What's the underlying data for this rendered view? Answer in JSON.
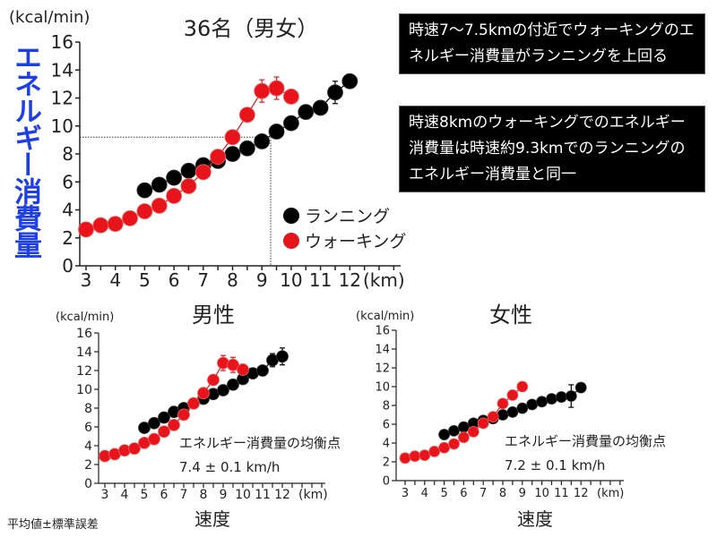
{
  "vertical_title": "エネルギー消費量",
  "notes": [
    "時速7〜7.5kmの付近でウォーキングのエネルギー消費量がランニングを上回る",
    "時速8kmのウォーキングでのエネルギー消費量は時速約9.3kmでのランニングのエネルギー消費量と同一"
  ],
  "footnote": "平均値±標準誤差",
  "colors": {
    "running": "#000000",
    "walking": "#e8141c",
    "title_blue": "#1f3fe6"
  },
  "chart_data": [
    {
      "type": "line",
      "title": "36名（男女）",
      "ylabel": "(kcal/min)",
      "xunit": "(km)",
      "xlabel": "",
      "ylim": [
        0,
        16
      ],
      "yticks": [
        0,
        2,
        4,
        6,
        8,
        10,
        12,
        14,
        16
      ],
      "xticks": [
        3,
        4,
        5,
        6,
        7,
        8,
        9,
        10,
        11,
        12
      ],
      "legend": [
        "ランニング",
        "ウォーキング"
      ],
      "legend_position": "right",
      "reference": {
        "x": 9.3,
        "y": 9.2
      },
      "series": [
        {
          "name": "ランニング",
          "color": "#000000",
          "x": [
            5,
            5.5,
            6,
            6.5,
            7,
            7.5,
            8,
            8.5,
            9,
            9.5,
            10,
            10.5,
            11,
            11.5,
            12
          ],
          "y": [
            5.4,
            5.8,
            6.3,
            6.8,
            7.2,
            7.5,
            8.0,
            8.4,
            8.9,
            9.6,
            10.2,
            11.0,
            11.3,
            12.4,
            13.2
          ],
          "err": [
            0,
            0,
            0,
            0,
            0,
            0,
            0,
            0,
            0,
            0,
            0,
            0,
            0.3,
            0.8,
            0
          ]
        },
        {
          "name": "ウォーキング",
          "color": "#e8141c",
          "x": [
            3,
            3.5,
            4,
            4.5,
            5,
            5.5,
            6,
            6.5,
            7,
            7.5,
            8,
            8.5,
            9,
            9.5,
            10
          ],
          "y": [
            2.6,
            2.9,
            3.0,
            3.4,
            3.9,
            4.3,
            5.0,
            5.7,
            6.7,
            7.8,
            9.2,
            10.8,
            12.5,
            12.7,
            12.1
          ],
          "err": [
            0,
            0,
            0,
            0,
            0,
            0,
            0,
            0,
            0,
            0,
            0,
            0,
            0.8,
            0.8,
            0
          ]
        }
      ]
    },
    {
      "type": "line",
      "title": "男性",
      "ylabel": "(kcal/min)",
      "xunit": "(km)",
      "xlabel": "速度",
      "ylim": [
        0,
        16
      ],
      "yticks": [
        0,
        2,
        4,
        6,
        8,
        10,
        12,
        14,
        16
      ],
      "xticks": [
        3,
        4,
        5,
        6,
        7,
        8,
        9,
        10,
        11,
        12
      ],
      "annotation": [
        "エネルギー消費量の均衡点",
        "7.4 ± 0.1 km/h"
      ],
      "series": [
        {
          "name": "ランニング",
          "color": "#000000",
          "x": [
            5,
            5.5,
            6,
            6.5,
            7,
            7.5,
            8,
            8.5,
            9,
            9.5,
            10,
            10.5,
            11,
            11.5,
            12
          ],
          "y": [
            5.9,
            6.4,
            7.0,
            7.6,
            8.0,
            8.5,
            9.0,
            9.5,
            9.9,
            10.5,
            11.1,
            11.7,
            12.0,
            13.1,
            13.5
          ],
          "err": [
            0,
            0,
            0,
            0,
            0,
            0,
            0,
            0,
            0,
            0,
            0,
            0,
            0.4,
            0.7,
            0.9
          ]
        },
        {
          "name": "ウォーキング",
          "color": "#e8141c",
          "x": [
            3,
            3.5,
            4,
            4.5,
            5,
            5.5,
            6,
            6.5,
            7,
            7.5,
            8,
            8.5,
            9,
            9.5,
            10
          ],
          "y": [
            2.9,
            3.1,
            3.5,
            3.7,
            4.3,
            4.7,
            5.5,
            6.2,
            7.3,
            8.5,
            9.6,
            11.0,
            12.8,
            12.6,
            12.1
          ],
          "err": [
            0,
            0,
            0,
            0,
            0,
            0,
            0,
            0,
            0,
            0,
            0,
            0,
            0.8,
            0.8,
            0
          ]
        }
      ]
    },
    {
      "type": "line",
      "title": "女性",
      "ylabel": "(kcal/min)",
      "xunit": "(km)",
      "xlabel": "速度",
      "ylim": [
        0,
        16
      ],
      "yticks": [
        0,
        2,
        4,
        6,
        8,
        10,
        12,
        14,
        16
      ],
      "xticks": [
        3,
        4,
        5,
        6,
        7,
        8,
        9,
        10,
        11,
        12
      ],
      "annotation": [
        "エネルギー消費量の均衡点",
        "7.2 ± 0.1 km/h"
      ],
      "series": [
        {
          "name": "ランニング",
          "color": "#000000",
          "x": [
            5,
            5.5,
            6,
            6.5,
            7,
            7.5,
            8,
            8.5,
            9,
            9.5,
            10,
            10.5,
            11,
            11.5,
            12
          ],
          "y": [
            4.9,
            5.3,
            5.7,
            6.1,
            6.4,
            6.6,
            7.0,
            7.3,
            7.7,
            8.1,
            8.4,
            8.7,
            8.9,
            9.0,
            9.9
          ],
          "err": [
            0,
            0,
            0,
            0,
            0,
            0,
            0,
            0,
            0,
            0,
            0,
            0.4,
            0,
            1.2,
            0
          ]
        },
        {
          "name": "ウォーキング",
          "color": "#e8141c",
          "x": [
            3,
            3.5,
            4,
            4.5,
            5,
            5.5,
            6,
            6.5,
            7,
            7.5,
            8,
            8.5,
            9
          ],
          "y": [
            2.4,
            2.6,
            2.7,
            3.1,
            3.5,
            3.9,
            4.6,
            5.2,
            6.1,
            6.8,
            8.2,
            9.1,
            10.0
          ],
          "err": [
            0,
            0,
            0,
            0,
            0,
            0,
            0,
            0,
            0,
            0,
            0,
            0,
            0
          ]
        }
      ]
    }
  ]
}
